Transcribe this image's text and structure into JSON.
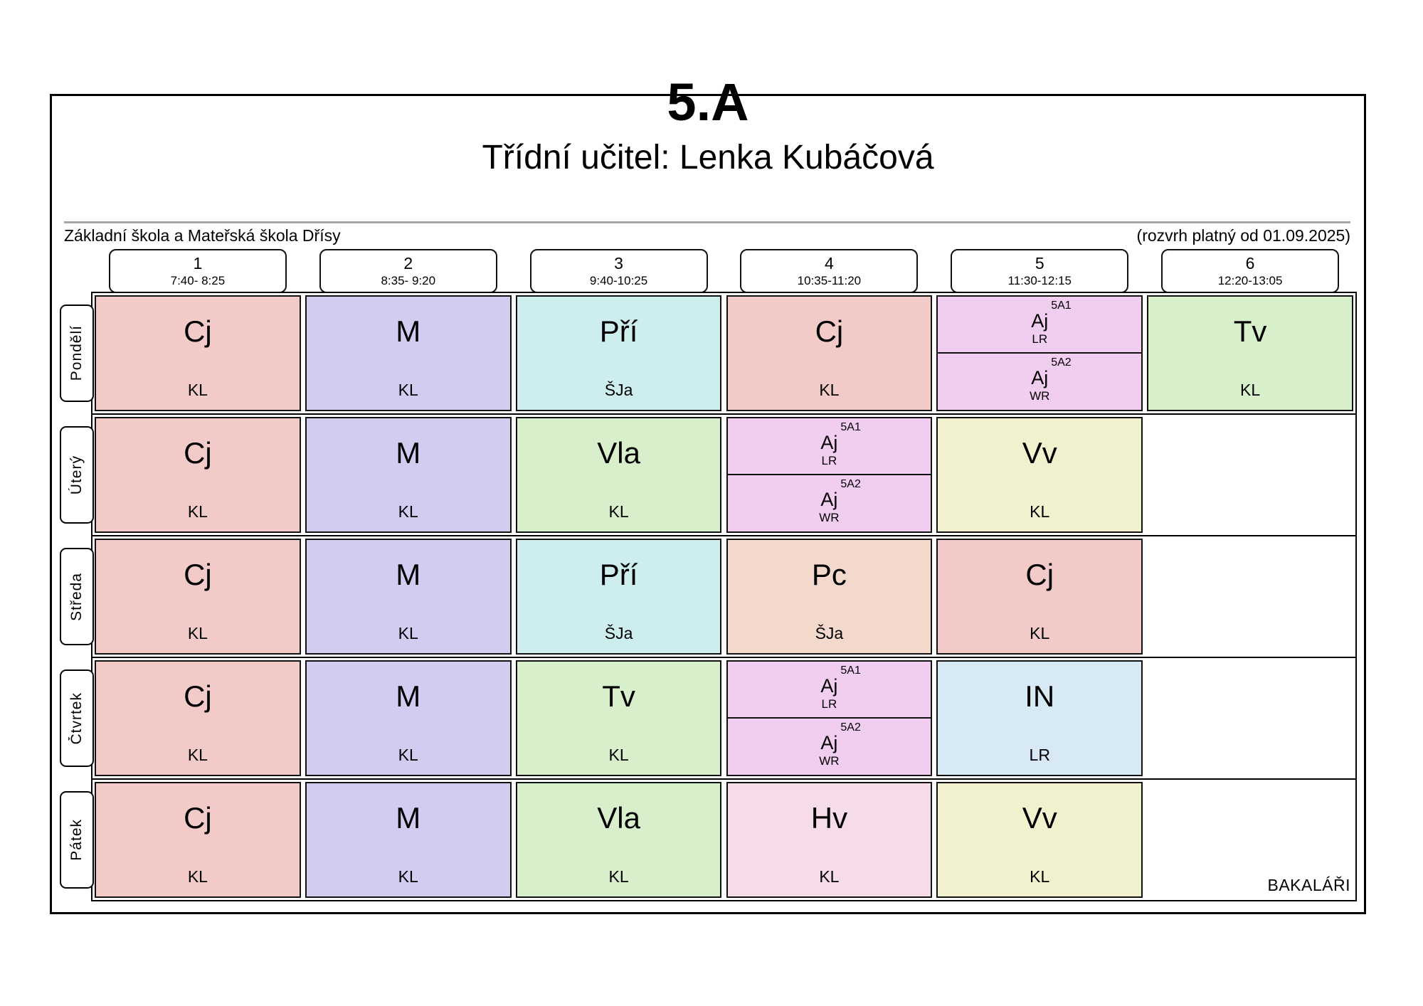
{
  "header": {
    "class_name": "5.A",
    "subtitle": "Třídní učitel: Lenka Kubáčová",
    "school": "Základní škola a Mateřská škola Dřísy",
    "validity_note": "(rozvrh platný od 01.09.2025)"
  },
  "footer": {
    "brand": "BAKALÁŘI"
  },
  "colors": {
    "pink": "#f2cbc8",
    "lavender": "#d1ccf0",
    "cyan": "#cdedef",
    "green": "#d7efcb",
    "violet": "#f1cdef",
    "yellow": "#f1f1cd",
    "peach": "#f3d9cb",
    "blue": "#d7e9f4",
    "rose": "#f6dbe9",
    "cell_border": "#111111",
    "rule_gray": "#a6a6a6"
  },
  "periods": [
    {
      "num": "1",
      "time": "7:40- 8:25"
    },
    {
      "num": "2",
      "time": "8:35- 9:20"
    },
    {
      "num": "3",
      "time": "9:40-10:25"
    },
    {
      "num": "4",
      "time": "10:35-11:20"
    },
    {
      "num": "5",
      "time": "11:30-12:15"
    },
    {
      "num": "6",
      "time": "12:20-13:05"
    }
  ],
  "days": [
    {
      "label": "Pondělí",
      "cells": [
        {
          "type": "single",
          "subject": "Cj",
          "teacher": "KL",
          "color": "pink"
        },
        {
          "type": "single",
          "subject": "M",
          "teacher": "KL",
          "color": "lavender"
        },
        {
          "type": "single",
          "subject": "Pří",
          "teacher": "ŠJa",
          "color": "cyan"
        },
        {
          "type": "single",
          "subject": "Cj",
          "teacher": "KL",
          "color": "pink"
        },
        {
          "type": "split",
          "color": "violet",
          "groups": [
            {
              "tag": "5A1",
              "subject": "Aj",
              "teacher": "LR"
            },
            {
              "tag": "5A2",
              "subject": "Aj",
              "teacher": "WR"
            }
          ]
        },
        {
          "type": "single",
          "subject": "Tv",
          "teacher": "KL",
          "color": "green"
        }
      ]
    },
    {
      "label": "Úterý",
      "cells": [
        {
          "type": "single",
          "subject": "Cj",
          "teacher": "KL",
          "color": "pink"
        },
        {
          "type": "single",
          "subject": "M",
          "teacher": "KL",
          "color": "lavender"
        },
        {
          "type": "single",
          "subject": "Vla",
          "teacher": "KL",
          "color": "green"
        },
        {
          "type": "split",
          "color": "violet",
          "groups": [
            {
              "tag": "5A1",
              "subject": "Aj",
              "teacher": "LR"
            },
            {
              "tag": "5A2",
              "subject": "Aj",
              "teacher": "WR"
            }
          ]
        },
        {
          "type": "single",
          "subject": "Vv",
          "teacher": "KL",
          "color": "yellow"
        },
        {
          "type": "empty"
        }
      ]
    },
    {
      "label": "Středa",
      "cells": [
        {
          "type": "single",
          "subject": "Cj",
          "teacher": "KL",
          "color": "pink"
        },
        {
          "type": "single",
          "subject": "M",
          "teacher": "KL",
          "color": "lavender"
        },
        {
          "type": "single",
          "subject": "Pří",
          "teacher": "ŠJa",
          "color": "cyan"
        },
        {
          "type": "single",
          "subject": "Pc",
          "teacher": "ŠJa",
          "color": "peach"
        },
        {
          "type": "single",
          "subject": "Cj",
          "teacher": "KL",
          "color": "pink"
        },
        {
          "type": "empty"
        }
      ]
    },
    {
      "label": "Čtvrtek",
      "cells": [
        {
          "type": "single",
          "subject": "Cj",
          "teacher": "KL",
          "color": "pink"
        },
        {
          "type": "single",
          "subject": "M",
          "teacher": "KL",
          "color": "lavender"
        },
        {
          "type": "single",
          "subject": "Tv",
          "teacher": "KL",
          "color": "green"
        },
        {
          "type": "split",
          "color": "violet",
          "groups": [
            {
              "tag": "5A1",
              "subject": "Aj",
              "teacher": "LR"
            },
            {
              "tag": "5A2",
              "subject": "Aj",
              "teacher": "WR"
            }
          ]
        },
        {
          "type": "single",
          "subject": "IN",
          "teacher": "LR",
          "color": "blue"
        },
        {
          "type": "empty"
        }
      ]
    },
    {
      "label": "Pátek",
      "cells": [
        {
          "type": "single",
          "subject": "Cj",
          "teacher": "KL",
          "color": "pink"
        },
        {
          "type": "single",
          "subject": "M",
          "teacher": "KL",
          "color": "lavender"
        },
        {
          "type": "single",
          "subject": "Vla",
          "teacher": "KL",
          "color": "green"
        },
        {
          "type": "single",
          "subject": "Hv",
          "teacher": "KL",
          "color": "rose"
        },
        {
          "type": "single",
          "subject": "Vv",
          "teacher": "KL",
          "color": "yellow"
        },
        {
          "type": "empty"
        }
      ]
    }
  ]
}
